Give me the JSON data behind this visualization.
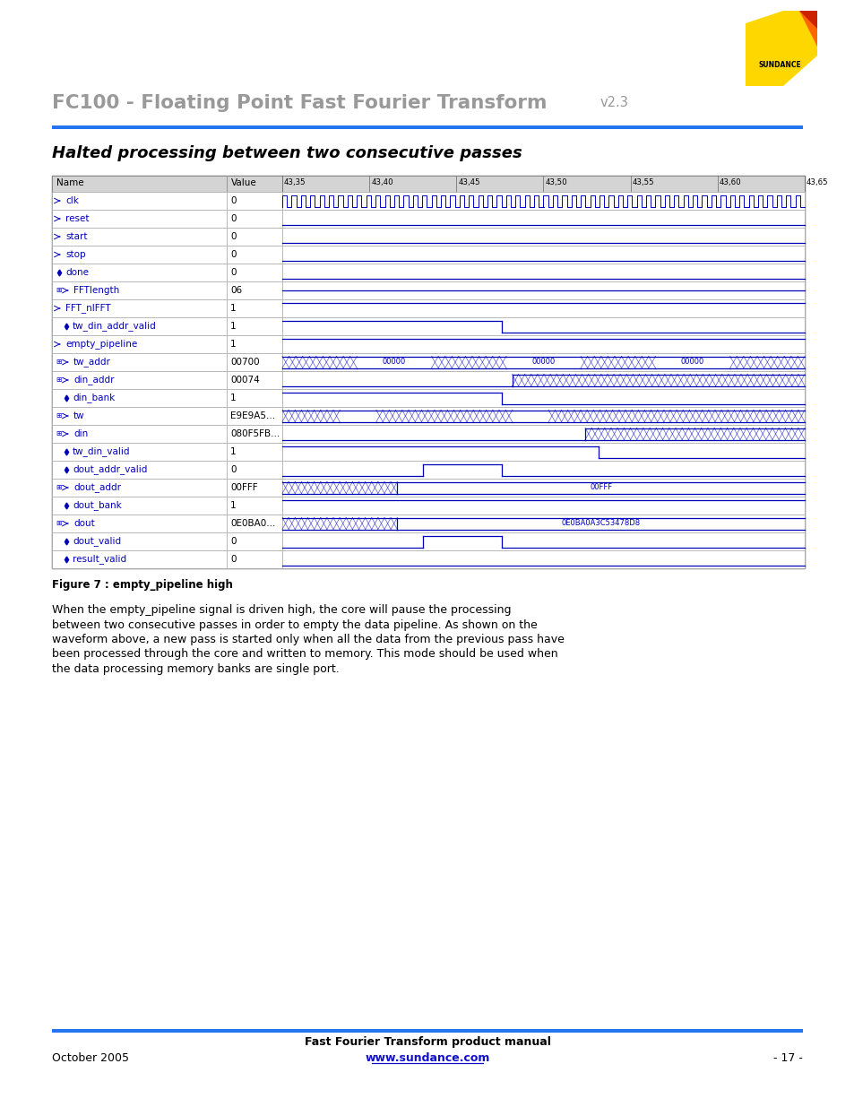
{
  "title_main": "FC100 - Floating Point Fast Fourier Transform",
  "title_version": "v2.3",
  "section_title": "Halted processing between two consecutive passes",
  "figure_caption": "Figure 7 : empty_pipeline high",
  "body_text_lines": [
    "When the empty_pipeline signal is driven high, the core will pause the processing",
    "between two consecutive passes in order to empty the data pipeline. As shown on the",
    "waveform above, a new pass is started only when all the data from the previous pass have",
    "been processed through the core and written to memory. This mode should be used when",
    "the data processing memory banks are single port."
  ],
  "footer_left": "October 2005",
  "footer_center_top": "Fast Fourier Transform product manual",
  "footer_url": "www.sundance.com",
  "footer_right": "- 17 -",
  "blue_line_color": "#2277EE",
  "table_header_bg": "#d4d4d4",
  "signal_color": "#0000bb",
  "signals": [
    {
      "name": "clk",
      "value": "0",
      "type": "clock",
      "expand": false,
      "indent": false,
      "diamond": false
    },
    {
      "name": "reset",
      "value": "0",
      "type": "low",
      "expand": false,
      "indent": false,
      "diamond": false
    },
    {
      "name": "start",
      "value": "0",
      "type": "low",
      "expand": false,
      "indent": false,
      "diamond": false
    },
    {
      "name": "stop",
      "value": "0",
      "type": "low",
      "expand": false,
      "indent": false,
      "diamond": false
    },
    {
      "name": "done",
      "value": "0",
      "type": "low",
      "expand": false,
      "indent": false,
      "diamond": true
    },
    {
      "name": "FFTlength",
      "value": "06",
      "type": "bus_mid",
      "expand": true,
      "indent": false,
      "diamond": false
    },
    {
      "name": "FFT_nIFFT",
      "value": "1",
      "type": "high",
      "expand": false,
      "indent": false,
      "diamond": false
    },
    {
      "name": "tw_din_addr_valid",
      "value": "1",
      "type": "high_fall_42",
      "expand": false,
      "indent": true,
      "diamond": true
    },
    {
      "name": "empty_pipeline",
      "value": "1",
      "type": "high",
      "expand": false,
      "indent": false,
      "diamond": false
    },
    {
      "name": "tw_addr",
      "value": "00700",
      "type": "tw_addr_wave",
      "expand": true,
      "indent": false,
      "diamond": false
    },
    {
      "name": "din_addr",
      "value": "00074",
      "type": "din_addr_wave",
      "expand": true,
      "indent": false,
      "diamond": false
    },
    {
      "name": "din_bank",
      "value": "1",
      "type": "high_fall_42",
      "expand": false,
      "indent": true,
      "diamond": true
    },
    {
      "name": "tw",
      "value": "E9E9A5...",
      "type": "tw_wave",
      "expand": true,
      "indent": false,
      "diamond": false
    },
    {
      "name": "din",
      "value": "080F5FB...",
      "type": "din_wave",
      "expand": true,
      "indent": false,
      "diamond": false
    },
    {
      "name": "tw_din_valid",
      "value": "1",
      "type": "high_fall_60",
      "expand": false,
      "indent": true,
      "diamond": true
    },
    {
      "name": "dout_addr_valid",
      "value": "0",
      "type": "pulse_27_42",
      "expand": false,
      "indent": true,
      "diamond": true
    },
    {
      "name": "dout_addr",
      "value": "00FFF",
      "type": "dout_addr_wave",
      "expand": true,
      "indent": false,
      "diamond": false
    },
    {
      "name": "dout_bank",
      "value": "1",
      "type": "high",
      "expand": false,
      "indent": true,
      "diamond": true
    },
    {
      "name": "dout",
      "value": "0E0BA0...",
      "type": "dout_wave",
      "expand": true,
      "indent": false,
      "diamond": false
    },
    {
      "name": "dout_valid",
      "value": "0",
      "type": "pulse_27_42",
      "expand": false,
      "indent": true,
      "diamond": true
    },
    {
      "name": "result_valid",
      "value": "0",
      "type": "low",
      "expand": false,
      "indent": true,
      "diamond": true
    }
  ],
  "time_ticks": [
    "43,35",
    "43,40",
    "43,45",
    "43,50",
    "43,55",
    "43,60",
    "43,65"
  ]
}
